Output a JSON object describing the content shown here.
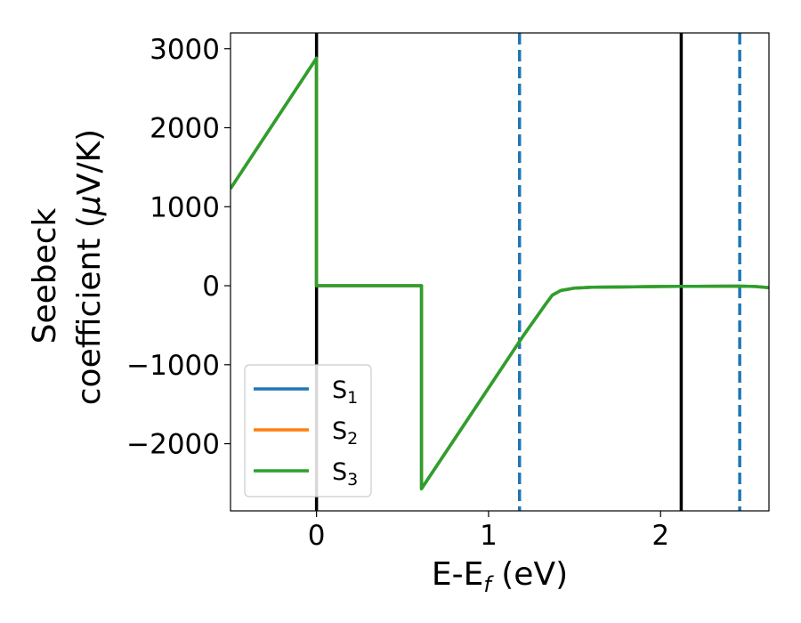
{
  "chart_data": {
    "type": "line",
    "xlabel": "E-E",
    "xlabel_sub": "f",
    "xlabel_unit": " (eV)",
    "ylabel_line1": "Seebeck",
    "ylabel_line2": "coefficient  (",
    "ylabel_mu": "μ",
    "ylabel_unit": "V/K)",
    "xlim": [
      -0.5,
      2.63
    ],
    "ylim": [
      -2850,
      3200
    ],
    "xticks": [
      0,
      1,
      2
    ],
    "yticks": [
      -2000,
      -1000,
      0,
      1000,
      2000,
      3000
    ],
    "ytick_labels": [
      "−2000",
      "−1000",
      "0",
      "1000",
      "2000",
      "3000"
    ],
    "grid": false,
    "legend_position": "lower-left",
    "series": [
      {
        "name": "S",
        "subscript": "1",
        "color": "#1f77b4",
        "x": [
          -0.5,
          0.0,
          0.0,
          0.61,
          0.61,
          1.2,
          1.33,
          1.37,
          1.42,
          1.5,
          1.6,
          1.8,
          2.0,
          2.2,
          2.45,
          2.55,
          2.63
        ],
        "y": [
          1230,
          2880,
          0,
          0,
          -2570,
          -640,
          -240,
          -120,
          -60,
          -30,
          -20,
          -15,
          -10,
          -8,
          -5,
          -10,
          -25
        ]
      },
      {
        "name": "S",
        "subscript": "2",
        "color": "#ff7f0e",
        "x": [
          -0.5,
          0.0,
          0.0,
          0.61,
          0.61,
          1.2,
          1.33,
          1.37,
          1.42,
          1.5,
          1.6,
          1.8,
          2.0,
          2.2,
          2.45,
          2.55,
          2.63
        ],
        "y": [
          1230,
          2880,
          0,
          0,
          -2570,
          -640,
          -240,
          -120,
          -60,
          -30,
          -20,
          -15,
          -10,
          -8,
          -5,
          -10,
          -25
        ]
      },
      {
        "name": "S",
        "subscript": "3",
        "color": "#2ca02c",
        "x": [
          -0.5,
          0.0,
          0.0,
          0.61,
          0.61,
          1.2,
          1.33,
          1.37,
          1.42,
          1.5,
          1.6,
          1.8,
          2.0,
          2.2,
          2.45,
          2.55,
          2.63
        ],
        "y": [
          1230,
          2880,
          0,
          0,
          -2570,
          -640,
          -240,
          -120,
          -60,
          -30,
          -20,
          -15,
          -10,
          -8,
          -5,
          -10,
          -25
        ]
      }
    ],
    "vlines": [
      {
        "x": 0.0,
        "color": "#000000",
        "style": "solid"
      },
      {
        "x": 2.12,
        "color": "#000000",
        "style": "solid"
      },
      {
        "x": 1.18,
        "color": "#1f77b4",
        "style": "dashed"
      },
      {
        "x": 2.46,
        "color": "#1f77b4",
        "style": "dashed"
      }
    ]
  }
}
